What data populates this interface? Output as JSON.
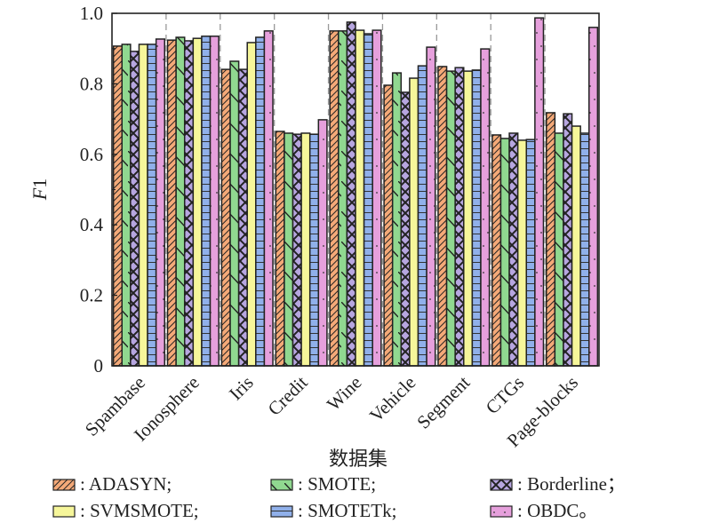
{
  "chart_data": {
    "type": "bar",
    "title": "",
    "xlabel": "数据集",
    "ylabel_italic": "F",
    "ylabel_rest": "1",
    "ylabel": "F1",
    "ylim": [
      0,
      1.0
    ],
    "yticks": [
      0,
      0.2,
      0.4,
      0.6,
      0.8,
      1.0
    ],
    "ytick_labels": [
      "0",
      "0.2",
      "0.4",
      "0.6",
      "0.8",
      "1.0"
    ],
    "grid": false,
    "group_separators": "dashed",
    "legend_position": "bottom",
    "categories": [
      "Spambase",
      "Ionosphere",
      "Iris",
      "Credit",
      "Wine",
      "Vehicle",
      "Segment",
      "CTGs",
      "Page-blocks"
    ],
    "series": [
      {
        "name": "ADASYN",
        "legend_label": ": ADASYN;",
        "color": "#f4a978",
        "pattern": "diagonal-hatch",
        "values": [
          0.907,
          0.924,
          0.841,
          0.665,
          0.95,
          0.796,
          0.849,
          0.655,
          0.718
        ]
      },
      {
        "name": "SMOTE",
        "legend_label": ": SMOTE;",
        "color": "#90d890",
        "pattern": "backslash-line",
        "values": [
          0.912,
          0.932,
          0.864,
          0.66,
          0.95,
          0.831,
          0.836,
          0.645,
          0.66
        ]
      },
      {
        "name": "Borderline",
        "legend_label": ": Borderline；",
        "color": "#b7a6e0",
        "pattern": "cross-hatch",
        "values": [
          0.892,
          0.922,
          0.841,
          0.657,
          0.975,
          0.776,
          0.846,
          0.66,
          0.715
        ]
      },
      {
        "name": "SVMSMOTE",
        "legend_label": ": SVMSMOTE;",
        "color": "#f6f69a",
        "pattern": "none",
        "values": [
          0.912,
          0.929,
          0.917,
          0.66,
          0.952,
          0.816,
          0.836,
          0.64,
          0.68
        ]
      },
      {
        "name": "SMOTETk",
        "legend_label": ": SMOTETk;",
        "color": "#90b0ea",
        "pattern": "horizontal-lines",
        "values": [
          0.912,
          0.935,
          0.932,
          0.657,
          0.942,
          0.851,
          0.839,
          0.642,
          0.66
        ]
      },
      {
        "name": "OBDC",
        "legend_label": ": OBDC。",
        "color": "#e6a0dc",
        "pattern": "dots",
        "values": [
          0.927,
          0.935,
          0.95,
          0.698,
          0.952,
          0.904,
          0.899,
          0.987,
          0.96
        ]
      }
    ],
    "legend_order": [
      0,
      1,
      2,
      3,
      4,
      5
    ]
  }
}
